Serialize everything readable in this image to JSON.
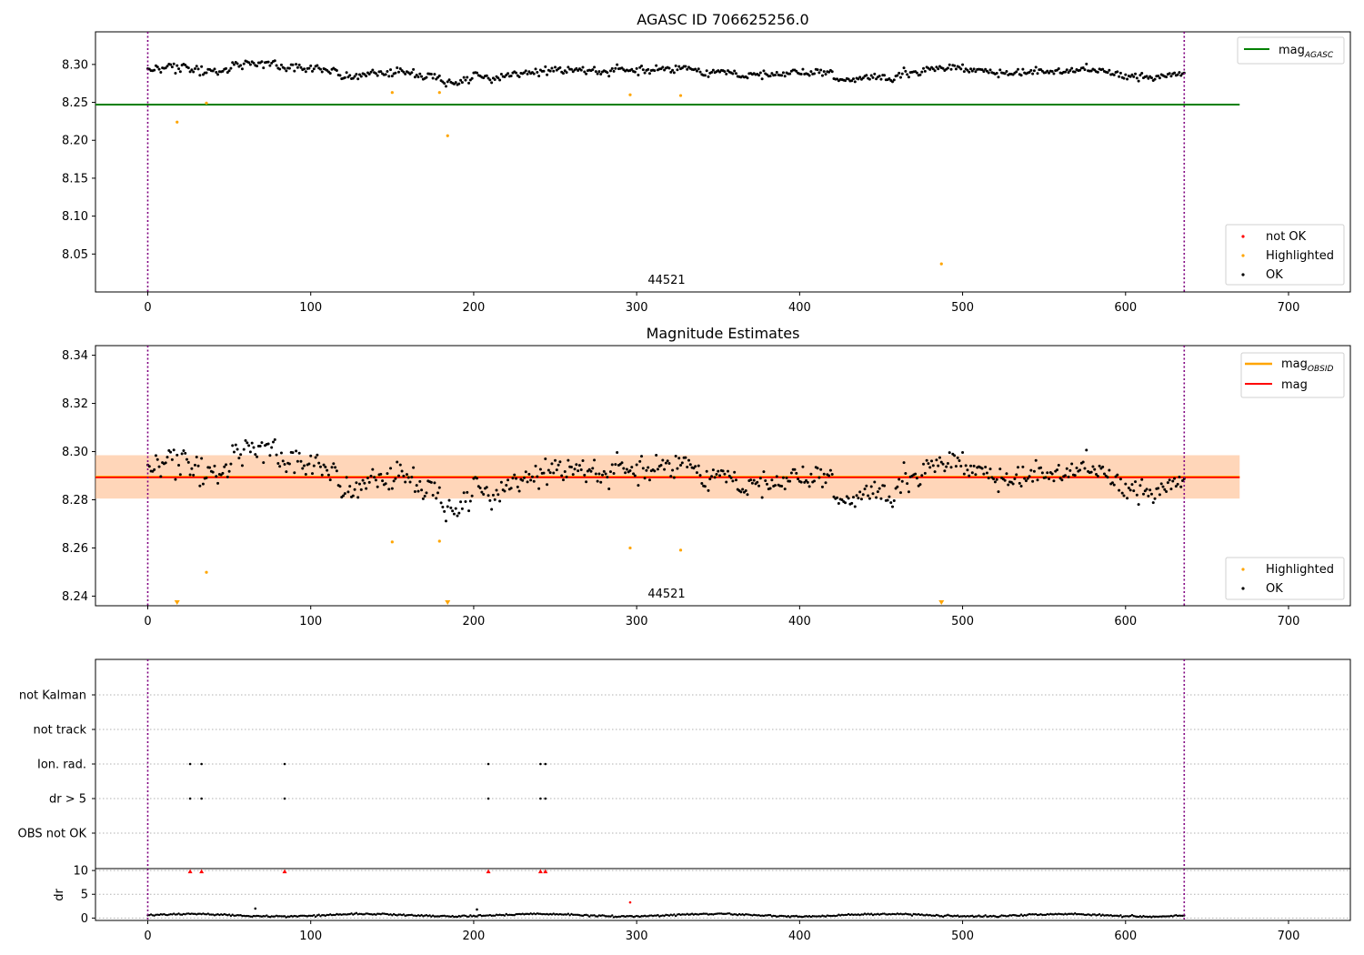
{
  "chart_data": [
    {
      "type": "scatter",
      "title": "AGASC ID 706625256.0",
      "xlim": [
        -32,
        738
      ],
      "ylim": [
        8.0,
        8.343
      ],
      "xticks": [
        "0",
        "100",
        "200",
        "300",
        "400",
        "500",
        "600",
        "700"
      ],
      "yticks": [
        "8.05",
        "8.10",
        "8.15",
        "8.20",
        "8.25",
        "8.30"
      ],
      "annotation": "44521",
      "vlines": [
        0,
        636
      ],
      "hline": {
        "y": 8.247,
        "xmax": 670,
        "color": "#008000"
      },
      "legend_upper": [
        {
          "label": "mag",
          "subscript": "AGASC",
          "color": "#008000"
        }
      ],
      "legend_lower": [
        {
          "label": "not OK",
          "color": "#ff0000"
        },
        {
          "label": "Highlighted",
          "color": "#ffa500"
        },
        {
          "label": "OK",
          "color": "#000000"
        }
      ],
      "highlighted": [
        [
          18,
          8.224
        ],
        [
          36,
          8.249
        ],
        [
          150,
          8.263
        ],
        [
          179,
          8.263
        ],
        [
          184,
          8.206
        ],
        [
          296,
          8.26
        ],
        [
          327,
          8.259
        ],
        [
          487,
          8.037
        ]
      ]
    },
    {
      "type": "scatter",
      "title": "Magnitude Estimates",
      "xlim": [
        -32,
        738
      ],
      "ylim": [
        8.236,
        8.344
      ],
      "xticks": [
        "0",
        "100",
        "200",
        "300",
        "400",
        "500",
        "600",
        "700"
      ],
      "yticks": [
        "8.24",
        "8.26",
        "8.28",
        "8.30",
        "8.32",
        "8.34"
      ],
      "annotation": "44521",
      "vlines": [
        0,
        636
      ],
      "mag_obsid": 8.2895,
      "mag": 8.2893,
      "band": [
        8.2805,
        8.2985
      ],
      "band_xmax": 670,
      "legend_upper": [
        {
          "label": "mag",
          "subscript": "OBSID",
          "color": "#ffa500"
        },
        {
          "label": "mag",
          "color": "#ff0000"
        }
      ],
      "legend_lower": [
        {
          "label": "Highlighted",
          "color": "#ffa500"
        },
        {
          "label": "OK",
          "color": "#000000"
        }
      ],
      "highlighted": [
        [
          150,
          8.2625
        ],
        [
          179,
          8.2628
        ],
        [
          296,
          8.26
        ],
        [
          327,
          8.2591
        ],
        [
          36,
          8.2499
        ]
      ],
      "highlighted_clipped": [
        18,
        184,
        487
      ]
    },
    {
      "type": "scatter",
      "categories": [
        "not Kalman",
        "not track",
        "Ion. rad.",
        "dr > 5",
        "OBS not OK"
      ],
      "flags": {
        "Ion. rad.": [
          26,
          33,
          84,
          209,
          241,
          244
        ],
        "dr > 5": [
          26,
          33,
          84,
          209,
          241,
          244
        ]
      }
    },
    {
      "type": "scatter",
      "ylabel": "dr",
      "xlim": [
        -32,
        738
      ],
      "ylim": [
        -0.5,
        10.4
      ],
      "xticks": [
        "0",
        "100",
        "200",
        "300",
        "400",
        "500",
        "600",
        "700"
      ],
      "yticks": [
        "0",
        "5",
        "10"
      ],
      "vlines": [
        0,
        636
      ],
      "red_high": [
        26,
        33,
        84,
        209,
        241,
        244
      ],
      "red_points": [
        [
          296,
          3.3
        ]
      ],
      "black_spikes": [
        [
          66,
          2.0
        ],
        [
          202,
          1.8
        ]
      ]
    }
  ]
}
